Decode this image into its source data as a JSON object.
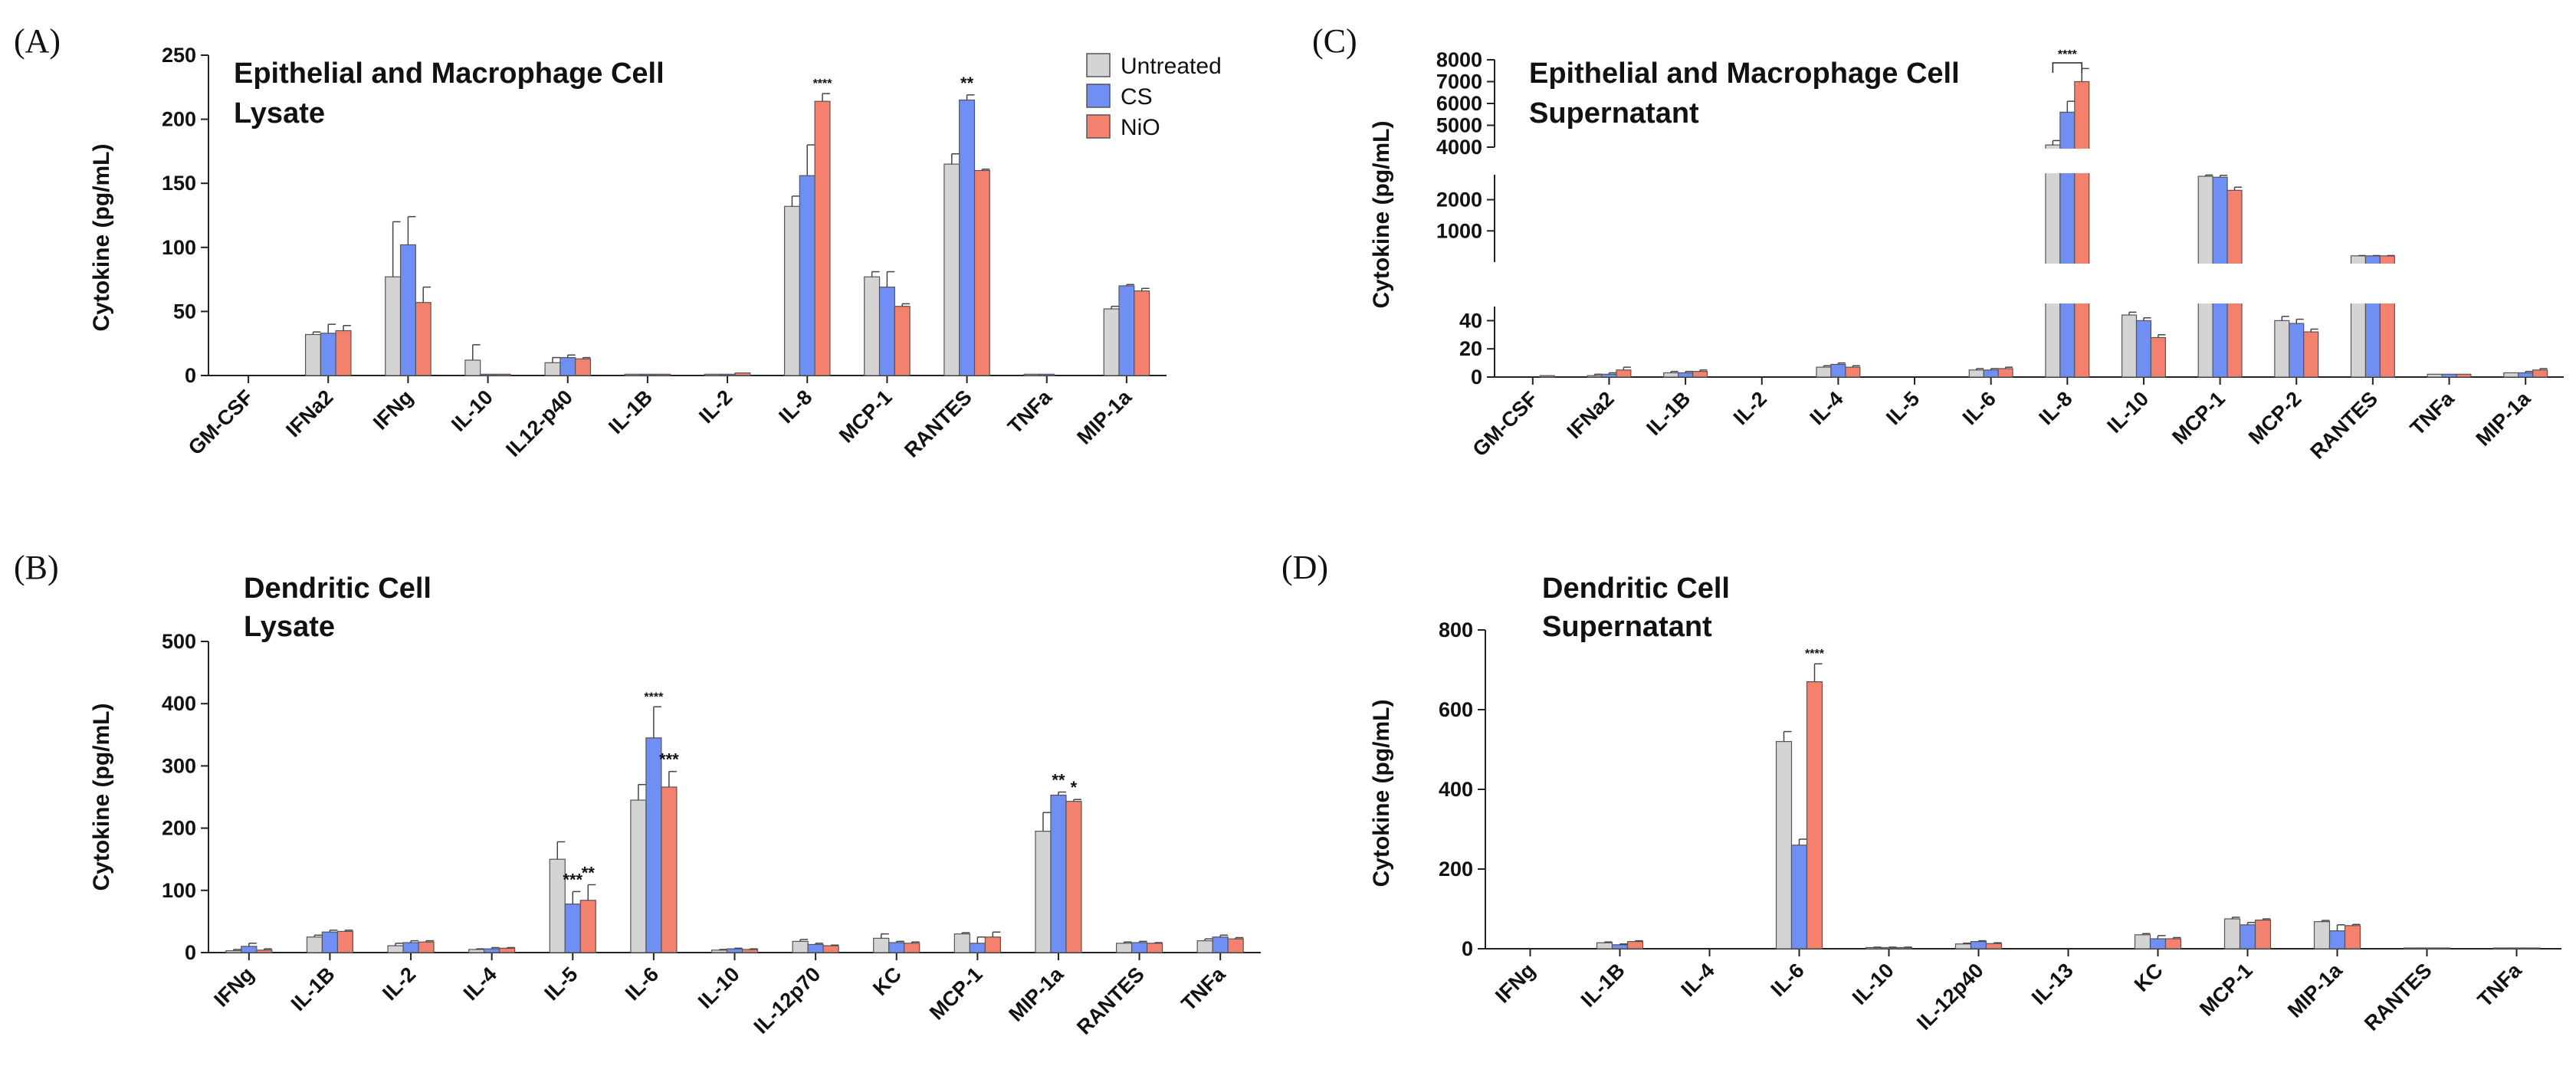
{
  "legend": {
    "series": [
      {
        "name": "Untreated",
        "color": "#d4d4d4"
      },
      {
        "name": "CS",
        "color": "#6f8ff4"
      },
      {
        "name": "NiO",
        "color": "#f4816e"
      }
    ]
  },
  "chart_data": [
    {
      "id": "A",
      "panel_label": "(A)",
      "type": "bar",
      "title_line1": "Epithelial and Macrophage Cell",
      "title_line2": "Lysate",
      "ylabel": "Cytokine (pg/mL)",
      "ylim": [
        0,
        250
      ],
      "yticks": [
        0,
        50,
        100,
        150,
        200,
        250
      ],
      "categories": [
        "GM-CSF",
        "IFNa2",
        "IFNg",
        "IL-10",
        "IL12-p40",
        "IL-1B",
        "IL-2",
        "IL-8",
        "MCP-1",
        "RANTES",
        "TNFa",
        "MIP-1a"
      ],
      "series": [
        {
          "name": "Untreated",
          "values": [
            0,
            32,
            77,
            12,
            10,
            1,
            1,
            132,
            77,
            165,
            1,
            52
          ],
          "errors": [
            0,
            2,
            43,
            12,
            4,
            0,
            0,
            8,
            4,
            8,
            0,
            2
          ]
        },
        {
          "name": "CS",
          "values": [
            0,
            33,
            102,
            1,
            14,
            1,
            1,
            156,
            69,
            215,
            1,
            70
          ],
          "errors": [
            0,
            7,
            22,
            0,
            2,
            0,
            0,
            24,
            12,
            4,
            0,
            1
          ]
        },
        {
          "name": "NiO",
          "values": [
            0,
            35,
            57,
            1,
            13,
            1,
            2,
            214,
            54,
            160,
            0,
            66
          ],
          "errors": [
            0,
            4,
            12,
            0,
            1,
            0,
            0,
            6,
            2,
            1,
            0,
            2
          ]
        }
      ],
      "significance": [
        {
          "category": "IL-8",
          "series": "NiO",
          "label": "****"
        },
        {
          "category": "RANTES",
          "series": "CS",
          "label": "**"
        }
      ]
    },
    {
      "id": "B",
      "panel_label": "(B)",
      "type": "bar",
      "title_line1": "Dendritic Cell",
      "title_line2": "Lysate",
      "ylabel": "Cytokine (pg/mL)",
      "ylim": [
        0,
        500
      ],
      "yticks": [
        0,
        100,
        200,
        300,
        400,
        500
      ],
      "categories": [
        "IFNg",
        "IL-1B",
        "IL-2",
        "IL-4",
        "IL-5",
        "IL-6",
        "IL-10",
        "IL-12p70",
        "KC",
        "MCP-1",
        "MIP-1a",
        "RANTES",
        "TNFa"
      ],
      "series": [
        {
          "name": "Untreated",
          "values": [
            3,
            25,
            11,
            5,
            150,
            245,
            4,
            18,
            23,
            30,
            195,
            15,
            19
          ],
          "errors": [
            2,
            3,
            4,
            1,
            28,
            25,
            1,
            3,
            7,
            2,
            30,
            2,
            3
          ]
        },
        {
          "name": "CS",
          "values": [
            10,
            33,
            16,
            6,
            78,
            345,
            6,
            13,
            16,
            15,
            253,
            16,
            25
          ],
          "errors": [
            5,
            3,
            3,
            2,
            20,
            50,
            1,
            2,
            2,
            10,
            5,
            2,
            3
          ]
        },
        {
          "name": "NiO",
          "values": [
            4,
            34,
            17,
            7,
            84,
            266,
            5,
            11,
            15,
            25,
            243,
            15,
            22
          ],
          "errors": [
            2,
            2,
            2,
            1,
            25,
            25,
            1,
            1,
            2,
            8,
            3,
            1,
            2
          ]
        }
      ],
      "significance": [
        {
          "category": "IL-5",
          "series": "CS",
          "label": "***"
        },
        {
          "category": "IL-5",
          "series": "NiO",
          "label": "**"
        },
        {
          "category": "IL-6",
          "series": "CS",
          "label": "****"
        },
        {
          "category": "IL-6",
          "series": "NiO",
          "label": "***"
        },
        {
          "category": "MIP-1a",
          "series": "CS",
          "label": "**"
        },
        {
          "category": "MIP-1a",
          "series": "NiO",
          "label": "*"
        }
      ]
    },
    {
      "id": "C",
      "panel_label": "(C)",
      "type": "bar",
      "title_line1": "Epithelial and Macrophage Cell",
      "title_line2": "Supernatant",
      "ylabel": "Cytokine (pg/mL)",
      "broken_axis": true,
      "ylim_segments": [
        [
          0,
          50
        ],
        [
          0,
          2800
        ],
        [
          4000,
          8000
        ]
      ],
      "yticks": [
        0,
        20,
        40,
        1000,
        2000,
        4000,
        5000,
        6000,
        7000,
        8000
      ],
      "categories": [
        "GM-CSF",
        "IFNa2",
        "IL-1B",
        "IL-2",
        "IL-4",
        "IL-5",
        "IL-6",
        "IL-8",
        "IL-10",
        "MCP-1",
        "MCP-2",
        "RANTES",
        "TNFa",
        "MIP-1a"
      ],
      "series": [
        {
          "name": "Untreated",
          "values": [
            0,
            1,
            3,
            0,
            7,
            0,
            5,
            4100,
            44,
            2750,
            40,
            200,
            2,
            3
          ],
          "errors": [
            0,
            1,
            1,
            0,
            1,
            0,
            1,
            200,
            2,
            40,
            3,
            10,
            0,
            0
          ]
        },
        {
          "name": "CS",
          "values": [
            0,
            2,
            3,
            0,
            9,
            0,
            5,
            5600,
            40,
            2720,
            38,
            200,
            2,
            3
          ],
          "errors": [
            0,
            1,
            1,
            0,
            1,
            0,
            1,
            500,
            2,
            60,
            3,
            10,
            0,
            1
          ]
        },
        {
          "name": "NiO",
          "values": [
            1,
            5,
            4,
            0,
            7,
            0,
            6,
            7000,
            28,
            2300,
            32,
            200,
            2,
            5
          ],
          "errors": [
            0,
            2,
            1,
            0,
            1,
            0,
            1,
            600,
            2,
            100,
            2,
            10,
            0,
            1
          ]
        }
      ],
      "significance": [
        {
          "category": "IL-8",
          "series": "Untreated-NiO",
          "label": "****"
        }
      ]
    },
    {
      "id": "D",
      "panel_label": "(D)",
      "type": "bar",
      "title_line1": "Dendritic Cell",
      "title_line2": "Supernatant",
      "ylabel": "Cytokine (pg/mL)",
      "ylim": [
        0,
        800
      ],
      "yticks": [
        0,
        200,
        400,
        600,
        800
      ],
      "categories": [
        "IFNg",
        "IL-1B",
        "IL-4",
        "IL-6",
        "IL-10",
        "IL-12p40",
        "IL-13",
        "KC",
        "MCP-1",
        "MIP-1a",
        "RANTES",
        "TNFa"
      ],
      "series": [
        {
          "name": "Untreated",
          "values": [
            0,
            15,
            0,
            520,
            3,
            12,
            0,
            35,
            75,
            68,
            2,
            2
          ],
          "errors": [
            0,
            2,
            0,
            25,
            1,
            2,
            0,
            3,
            4,
            3,
            0,
            0
          ]
        },
        {
          "name": "CS",
          "values": [
            0,
            10,
            0,
            260,
            3,
            18,
            0,
            25,
            60,
            45,
            2,
            2
          ],
          "errors": [
            0,
            2,
            0,
            15,
            1,
            2,
            0,
            8,
            6,
            15,
            0,
            0
          ]
        },
        {
          "name": "NiO",
          "values": [
            0,
            18,
            0,
            670,
            3,
            13,
            0,
            25,
            72,
            58,
            2,
            2
          ],
          "errors": [
            0,
            2,
            0,
            45,
            1,
            2,
            0,
            3,
            3,
            3,
            0,
            0
          ]
        }
      ],
      "significance": [
        {
          "category": "IL-6",
          "series": "NiO",
          "label": "****"
        }
      ]
    }
  ]
}
